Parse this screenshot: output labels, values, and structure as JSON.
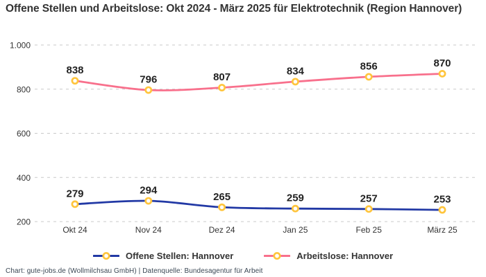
{
  "title": "Offene Stellen und Arbeitslose: Okt 2024 - März 2025 für Elektrotechnik (Region Hannover)",
  "footer": "Chart: gute-jobs.de (Wollmilchsau GmbH) | Datenquelle: Bundesagentur für Arbeit",
  "chart_data": {
    "type": "line",
    "title": "Offene Stellen und Arbeitslose: Okt 2024 - März 2025 für Elektrotechnik (Region Hannover)",
    "categories": [
      "Okt 24",
      "Nov 24",
      "Dez 24",
      "Jan 25",
      "Feb 25",
      "März 25"
    ],
    "series": [
      {
        "name": "Offene Stellen: Hannover",
        "color": "#2239A5",
        "values": [
          279,
          294,
          265,
          259,
          257,
          253
        ]
      },
      {
        "name": "Arbeitslose: Hannover",
        "color": "#F8708C",
        "values": [
          838,
          796,
          807,
          834,
          856,
          870
        ]
      }
    ],
    "marker": {
      "fill": "#FFFFFF",
      "stroke": "#FFC53D"
    },
    "ylim": [
      200,
      1000
    ],
    "yticks": [
      200,
      400,
      600,
      800,
      1000
    ],
    "ytick_labels": [
      "200",
      "400",
      "600",
      "800",
      "1.000"
    ],
    "grid": "horizontal-dashed",
    "grid_color": "#C8C8C8",
    "legend_position": "bottom",
    "source": "Chart: gute-jobs.de (Wollmilchsau GmbH) | Datenquelle: Bundesagentur für Arbeit"
  }
}
